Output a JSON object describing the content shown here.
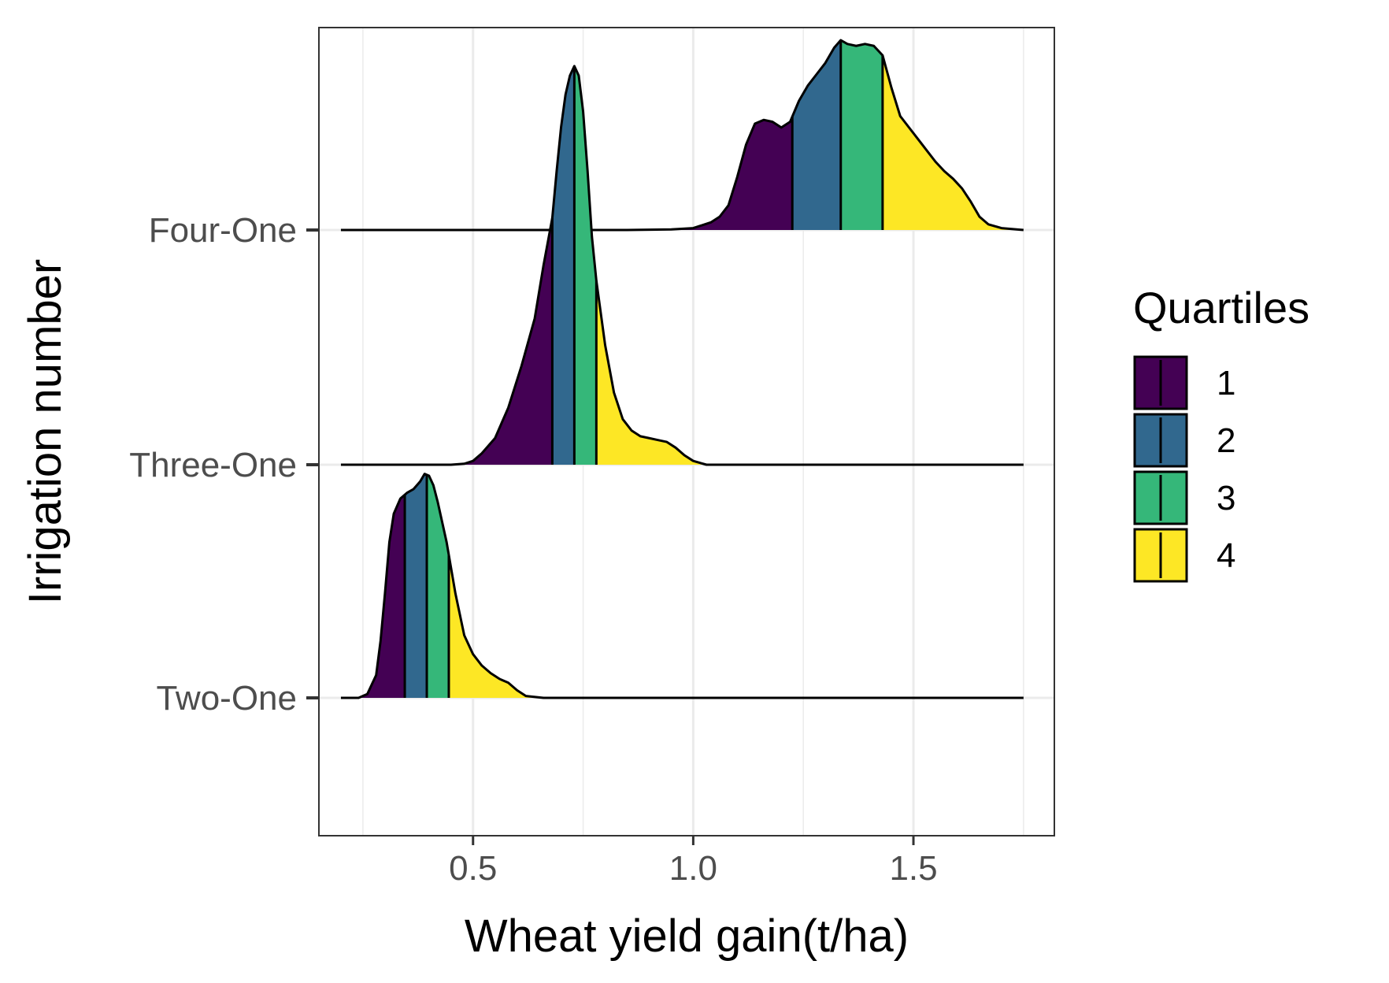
{
  "chart_data": {
    "type": "ridgeline",
    "xlabel": "Wheat yield gain(t/ha)",
    "ylabel": "Irrigation number",
    "xlim": [
      0.15,
      1.82
    ],
    "x_ticks": [
      "0.5",
      "1.0",
      "1.5"
    ],
    "x_tick_values": [
      0.5,
      1.0,
      1.5
    ],
    "x_minor_gridlines": [
      0.25,
      0.75,
      1.25,
      1.75
    ],
    "grid": true,
    "legend": {
      "title": "Quartiles",
      "placement": "right",
      "items": [
        {
          "label": "1",
          "color": "#440154"
        },
        {
          "label": "2",
          "color": "#31688E"
        },
        {
          "label": "3",
          "color": "#35B779"
        },
        {
          "label": "4",
          "color": "#FDE725"
        }
      ]
    },
    "categories": [
      "Two-One",
      "Three-One",
      "Four-One"
    ],
    "series": [
      {
        "name": "Two-One",
        "x_range": [
          0.2,
          1.75
        ],
        "quartiles": [
          0.345,
          0.395,
          0.445
        ],
        "density": [
          [
            0.2,
            0.0
          ],
          [
            0.24,
            0.0
          ],
          [
            0.26,
            0.02
          ],
          [
            0.28,
            0.12
          ],
          [
            0.29,
            0.3
          ],
          [
            0.3,
            0.55
          ],
          [
            0.31,
            0.82
          ],
          [
            0.32,
            0.97
          ],
          [
            0.335,
            1.05
          ],
          [
            0.35,
            1.08
          ],
          [
            0.365,
            1.1
          ],
          [
            0.38,
            1.14
          ],
          [
            0.39,
            1.18
          ],
          [
            0.4,
            1.17
          ],
          [
            0.41,
            1.12
          ],
          [
            0.42,
            1.03
          ],
          [
            0.44,
            0.82
          ],
          [
            0.46,
            0.55
          ],
          [
            0.48,
            0.33
          ],
          [
            0.5,
            0.23
          ],
          [
            0.52,
            0.17
          ],
          [
            0.54,
            0.13
          ],
          [
            0.56,
            0.1
          ],
          [
            0.58,
            0.08
          ],
          [
            0.6,
            0.04
          ],
          [
            0.62,
            0.01
          ],
          [
            0.66,
            0.0
          ],
          [
            1.75,
            0.0
          ]
        ]
      },
      {
        "name": "Three-One",
        "x_range": [
          0.2,
          1.75
        ],
        "quartiles": [
          0.68,
          0.73,
          0.78
        ],
        "density": [
          [
            0.2,
            0.0
          ],
          [
            0.45,
            0.0
          ],
          [
            0.48,
            0.005
          ],
          [
            0.5,
            0.02
          ],
          [
            0.52,
            0.06
          ],
          [
            0.55,
            0.14
          ],
          [
            0.58,
            0.3
          ],
          [
            0.61,
            0.52
          ],
          [
            0.64,
            0.77
          ],
          [
            0.66,
            1.05
          ],
          [
            0.68,
            1.3
          ],
          [
            0.69,
            1.55
          ],
          [
            0.7,
            1.78
          ],
          [
            0.71,
            1.95
          ],
          [
            0.72,
            2.05
          ],
          [
            0.73,
            2.1
          ],
          [
            0.74,
            2.05
          ],
          [
            0.75,
            1.86
          ],
          [
            0.76,
            1.55
          ],
          [
            0.77,
            1.2
          ],
          [
            0.78,
            0.97
          ],
          [
            0.79,
            0.8
          ],
          [
            0.8,
            0.63
          ],
          [
            0.82,
            0.38
          ],
          [
            0.84,
            0.24
          ],
          [
            0.86,
            0.18
          ],
          [
            0.88,
            0.15
          ],
          [
            0.9,
            0.14
          ],
          [
            0.92,
            0.13
          ],
          [
            0.94,
            0.12
          ],
          [
            0.96,
            0.09
          ],
          [
            0.98,
            0.05
          ],
          [
            1.0,
            0.02
          ],
          [
            1.03,
            0.0
          ],
          [
            1.75,
            0.0
          ]
        ]
      },
      {
        "name": "Four-One",
        "x_range": [
          0.2,
          1.75
        ],
        "quartiles": [
          1.225,
          1.335,
          1.43
        ],
        "density": [
          [
            0.2,
            0.0
          ],
          [
            0.85,
            0.0
          ],
          [
            0.95,
            0.003
          ],
          [
            1.0,
            0.01
          ],
          [
            1.04,
            0.04
          ],
          [
            1.06,
            0.07
          ],
          [
            1.08,
            0.13
          ],
          [
            1.1,
            0.28
          ],
          [
            1.12,
            0.45
          ],
          [
            1.14,
            0.56
          ],
          [
            1.16,
            0.58
          ],
          [
            1.18,
            0.57
          ],
          [
            1.2,
            0.54
          ],
          [
            1.22,
            0.57
          ],
          [
            1.24,
            0.68
          ],
          [
            1.26,
            0.76
          ],
          [
            1.28,
            0.82
          ],
          [
            1.3,
            0.88
          ],
          [
            1.32,
            0.96
          ],
          [
            1.335,
            1.0
          ],
          [
            1.35,
            0.98
          ],
          [
            1.37,
            0.97
          ],
          [
            1.39,
            0.98
          ],
          [
            1.41,
            0.97
          ],
          [
            1.43,
            0.92
          ],
          [
            1.45,
            0.75
          ],
          [
            1.47,
            0.6
          ],
          [
            1.49,
            0.54
          ],
          [
            1.51,
            0.48
          ],
          [
            1.53,
            0.42
          ],
          [
            1.55,
            0.36
          ],
          [
            1.57,
            0.31
          ],
          [
            1.59,
            0.27
          ],
          [
            1.61,
            0.22
          ],
          [
            1.63,
            0.15
          ],
          [
            1.65,
            0.07
          ],
          [
            1.67,
            0.03
          ],
          [
            1.7,
            0.01
          ],
          [
            1.75,
            0.0
          ]
        ]
      }
    ]
  }
}
